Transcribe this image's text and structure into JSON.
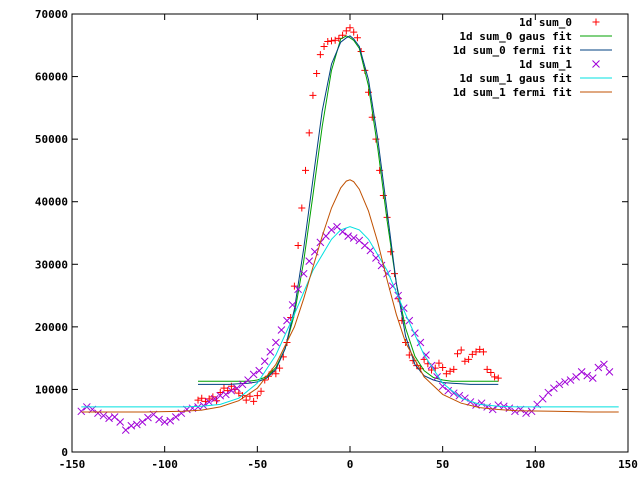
{
  "chart_data": {
    "type": "scatter",
    "title": "",
    "xlabel": "",
    "ylabel": "",
    "xlim": [
      -150,
      150
    ],
    "ylim": [
      0,
      70000
    ],
    "x_ticks": [
      "-150",
      "-100",
      "-50",
      "0",
      "50",
      "100",
      "150"
    ],
    "y_ticks": [
      "0",
      "10000",
      "20000",
      "30000",
      "40000",
      "50000",
      "60000",
      "70000"
    ],
    "grid": false,
    "legend_position": "top-right",
    "series": [
      {
        "name": "1d sum_0",
        "kind": "points",
        "marker": "plus",
        "color": "#ff0000",
        "x": [
          -82,
          -80,
          -78,
          -76,
          -74,
          -72,
          -70,
          -68,
          -66,
          -64,
          -62,
          -60,
          -58,
          -56,
          -54,
          -52,
          -50,
          -48,
          -46,
          -44,
          -42,
          -40,
          -38,
          -36,
          -34,
          -32,
          -30,
          -28,
          -26,
          -24,
          -22,
          -20,
          -18,
          -16,
          -14,
          -12,
          -10,
          -8,
          -6,
          -4,
          -2,
          0,
          2,
          4,
          6,
          8,
          10,
          12,
          14,
          16,
          18,
          20,
          22,
          24,
          26,
          28,
          30,
          32,
          34,
          36,
          38,
          40,
          42,
          44,
          46,
          48,
          50,
          52,
          54,
          56,
          58,
          60,
          62,
          64,
          66,
          68,
          70,
          72,
          74,
          76,
          78,
          80
        ],
        "y": [
          8300,
          8600,
          8100,
          8500,
          8800,
          8200,
          9500,
          10200,
          9800,
          10500,
          10000,
          9400,
          9000,
          8300,
          8900,
          8100,
          9000,
          9700,
          11500,
          12100,
          12800,
          12500,
          13400,
          15200,
          17500,
          21500,
          26500,
          33000,
          39000,
          45000,
          51000,
          57000,
          60500,
          63500,
          64800,
          65600,
          65700,
          65800,
          66100,
          66600,
          67300,
          67800,
          67100,
          66200,
          64000,
          61000,
          57500,
          53500,
          50000,
          45000,
          41000,
          37500,
          32000,
          28500,
          24500,
          21000,
          17500,
          15500,
          14600,
          13800,
          13300,
          14800,
          14100,
          13100,
          13400,
          14200,
          13500,
          12500,
          12900,
          13200,
          15700,
          16300,
          14500,
          14800,
          15600,
          16000,
          16400,
          16000,
          13200,
          12700,
          12000,
          11800
        ]
      },
      {
        "name": "1d sum_0 gaus fit",
        "kind": "line",
        "color": "#00a000",
        "x": [
          -82,
          -75,
          -70,
          -65,
          -60,
          -55,
          -50,
          -45,
          -40,
          -35,
          -30,
          -25,
          -20,
          -15,
          -10,
          -5,
          -2,
          0,
          2,
          5,
          10,
          15,
          20,
          25,
          30,
          35,
          40,
          45,
          50,
          55,
          60,
          65,
          70,
          75,
          80
        ],
        "y": [
          11300,
          11300,
          11300,
          11300,
          11300,
          11300,
          11500,
          12000,
          13500,
          16500,
          22000,
          30500,
          41000,
          52000,
          61000,
          66000,
          66500,
          66200,
          65800,
          64500,
          58500,
          48500,
          37000,
          27000,
          19800,
          15300,
          13000,
          11900,
          11500,
          11300,
          11300,
          11300,
          11300,
          11300,
          11300
        ]
      },
      {
        "name": "1d sum_0 fermi fit",
        "kind": "line",
        "color": "#004080",
        "x": [
          -82,
          -75,
          -70,
          -65,
          -60,
          -55,
          -50,
          -45,
          -40,
          -35,
          -30,
          -25,
          -20,
          -15,
          -10,
          -5,
          -2,
          0,
          2,
          5,
          10,
          15,
          20,
          25,
          30,
          35,
          40,
          45,
          50,
          55,
          60,
          65,
          70,
          75,
          80
        ],
        "y": [
          10800,
          10800,
          10800,
          10800,
          10900,
          11000,
          11200,
          11800,
          13200,
          16500,
          22800,
          32500,
          43500,
          54500,
          62000,
          65500,
          66200,
          66500,
          66000,
          64800,
          59500,
          50000,
          38500,
          27000,
          18500,
          14000,
          12200,
          11500,
          11100,
          11000,
          10900,
          10800,
          10800,
          10800,
          10800
        ]
      },
      {
        "name": "1d sum_1",
        "kind": "points",
        "marker": "cross",
        "color": "#a000d8",
        "x": [
          -145,
          -142,
          -139,
          -136,
          -133,
          -130,
          -127,
          -124,
          -121,
          -118,
          -115,
          -112,
          -109,
          -106,
          -103,
          -100,
          -97,
          -94,
          -91,
          -88,
          -85,
          -82,
          -79,
          -76,
          -73,
          -70,
          -67,
          -64,
          -61,
          -58,
          -55,
          -52,
          -49,
          -46,
          -43,
          -40,
          -37,
          -34,
          -31,
          -28,
          -25,
          -22,
          -19,
          -16,
          -13,
          -10,
          -7,
          -4,
          -1,
          2,
          5,
          8,
          11,
          14,
          17,
          20,
          23,
          26,
          29,
          32,
          35,
          38,
          41,
          44,
          47,
          50,
          53,
          56,
          59,
          62,
          65,
          68,
          71,
          74,
          77,
          80,
          83,
          86,
          89,
          92,
          95,
          98,
          101,
          104,
          107,
          110,
          113,
          116,
          119,
          122,
          125,
          128,
          131,
          134,
          137,
          140
        ],
        "y": [
          6500,
          7200,
          6800,
          6200,
          5800,
          5400,
          5600,
          4800,
          3500,
          4200,
          4400,
          4800,
          5500,
          6000,
          5200,
          4800,
          5000,
          5600,
          6200,
          6800,
          7000,
          7200,
          7400,
          8000,
          8500,
          9000,
          9200,
          9800,
          10200,
          10800,
          11500,
          12400,
          13000,
          14500,
          16000,
          17500,
          19500,
          21000,
          23500,
          26000,
          28500,
          30500,
          32000,
          33500,
          34500,
          35500,
          36000,
          35200,
          34500,
          34200,
          33800,
          33000,
          32200,
          31000,
          29800,
          28500,
          26500,
          25000,
          23000,
          21000,
          19000,
          17500,
          15500,
          13800,
          12000,
          10500,
          9800,
          9400,
          9000,
          8600,
          8000,
          7500,
          7800,
          7200,
          6800,
          7500,
          7300,
          7000,
          6500,
          6800,
          6200,
          6500,
          7600,
          8500,
          9500,
          10200,
          10800,
          11200,
          11500,
          12000,
          12800,
          12200,
          11800,
          13500,
          14000,
          12800
        ]
      },
      {
        "name": "1d sum_1 gaus fit",
        "kind": "line",
        "color": "#00e0e0",
        "x": [
          -145,
          -130,
          -110,
          -90,
          -80,
          -70,
          -60,
          -50,
          -40,
          -30,
          -20,
          -10,
          -5,
          0,
          5,
          10,
          20,
          30,
          40,
          50,
          60,
          70,
          80,
          90,
          110,
          130,
          145
        ],
        "y": [
          7200,
          7200,
          7200,
          7200,
          7300,
          7600,
          8600,
          11000,
          15500,
          22000,
          29000,
          34000,
          35500,
          36000,
          35500,
          34000,
          29000,
          22000,
          15500,
          11000,
          8600,
          7600,
          7300,
          7200,
          7200,
          7200,
          7200
        ]
      },
      {
        "name": "1d sum_1 fermi fit",
        "kind": "line",
        "color": "#c05000",
        "x": [
          -145,
          -130,
          -110,
          -90,
          -80,
          -70,
          -60,
          -50,
          -40,
          -30,
          -25,
          -20,
          -15,
          -10,
          -5,
          -2,
          0,
          2,
          5,
          10,
          15,
          20,
          25,
          30,
          40,
          50,
          60,
          70,
          80,
          90,
          110,
          130,
          145
        ],
        "y": [
          6400,
          6400,
          6400,
          6500,
          6700,
          7200,
          8200,
          10200,
          14000,
          20000,
          24500,
          29500,
          34500,
          39000,
          42200,
          43300,
          43500,
          43200,
          42000,
          38500,
          33500,
          27500,
          22000,
          17500,
          12000,
          9200,
          7800,
          7100,
          6800,
          6600,
          6500,
          6400,
          6400
        ]
      }
    ]
  }
}
